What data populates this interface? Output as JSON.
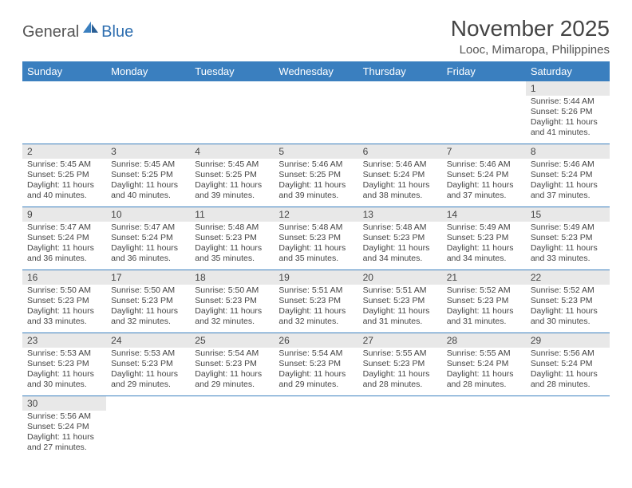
{
  "brand": {
    "part1": "General",
    "part2": "Blue"
  },
  "title": "November 2025",
  "location": "Looc, Mimaropa, Philippines",
  "colors": {
    "header_bg": "#3a7fbf",
    "header_fg": "#ffffff",
    "daynum_bg": "#e8e8e8",
    "rule": "#3a7fbf",
    "text": "#444444",
    "brand_accent": "#2f6fb0"
  },
  "weekdays": [
    "Sunday",
    "Monday",
    "Tuesday",
    "Wednesday",
    "Thursday",
    "Friday",
    "Saturday"
  ],
  "weeks": [
    [
      {
        "n": "",
        "sr": "",
        "ss": "",
        "dl": ""
      },
      {
        "n": "",
        "sr": "",
        "ss": "",
        "dl": ""
      },
      {
        "n": "",
        "sr": "",
        "ss": "",
        "dl": ""
      },
      {
        "n": "",
        "sr": "",
        "ss": "",
        "dl": ""
      },
      {
        "n": "",
        "sr": "",
        "ss": "",
        "dl": ""
      },
      {
        "n": "",
        "sr": "",
        "ss": "",
        "dl": ""
      },
      {
        "n": "1",
        "sr": "Sunrise: 5:44 AM",
        "ss": "Sunset: 5:26 PM",
        "dl": "Daylight: 11 hours and 41 minutes."
      }
    ],
    [
      {
        "n": "2",
        "sr": "Sunrise: 5:45 AM",
        "ss": "Sunset: 5:25 PM",
        "dl": "Daylight: 11 hours and 40 minutes."
      },
      {
        "n": "3",
        "sr": "Sunrise: 5:45 AM",
        "ss": "Sunset: 5:25 PM",
        "dl": "Daylight: 11 hours and 40 minutes."
      },
      {
        "n": "4",
        "sr": "Sunrise: 5:45 AM",
        "ss": "Sunset: 5:25 PM",
        "dl": "Daylight: 11 hours and 39 minutes."
      },
      {
        "n": "5",
        "sr": "Sunrise: 5:46 AM",
        "ss": "Sunset: 5:25 PM",
        "dl": "Daylight: 11 hours and 39 minutes."
      },
      {
        "n": "6",
        "sr": "Sunrise: 5:46 AM",
        "ss": "Sunset: 5:24 PM",
        "dl": "Daylight: 11 hours and 38 minutes."
      },
      {
        "n": "7",
        "sr": "Sunrise: 5:46 AM",
        "ss": "Sunset: 5:24 PM",
        "dl": "Daylight: 11 hours and 37 minutes."
      },
      {
        "n": "8",
        "sr": "Sunrise: 5:46 AM",
        "ss": "Sunset: 5:24 PM",
        "dl": "Daylight: 11 hours and 37 minutes."
      }
    ],
    [
      {
        "n": "9",
        "sr": "Sunrise: 5:47 AM",
        "ss": "Sunset: 5:24 PM",
        "dl": "Daylight: 11 hours and 36 minutes."
      },
      {
        "n": "10",
        "sr": "Sunrise: 5:47 AM",
        "ss": "Sunset: 5:24 PM",
        "dl": "Daylight: 11 hours and 36 minutes."
      },
      {
        "n": "11",
        "sr": "Sunrise: 5:48 AM",
        "ss": "Sunset: 5:23 PM",
        "dl": "Daylight: 11 hours and 35 minutes."
      },
      {
        "n": "12",
        "sr": "Sunrise: 5:48 AM",
        "ss": "Sunset: 5:23 PM",
        "dl": "Daylight: 11 hours and 35 minutes."
      },
      {
        "n": "13",
        "sr": "Sunrise: 5:48 AM",
        "ss": "Sunset: 5:23 PM",
        "dl": "Daylight: 11 hours and 34 minutes."
      },
      {
        "n": "14",
        "sr": "Sunrise: 5:49 AM",
        "ss": "Sunset: 5:23 PM",
        "dl": "Daylight: 11 hours and 34 minutes."
      },
      {
        "n": "15",
        "sr": "Sunrise: 5:49 AM",
        "ss": "Sunset: 5:23 PM",
        "dl": "Daylight: 11 hours and 33 minutes."
      }
    ],
    [
      {
        "n": "16",
        "sr": "Sunrise: 5:50 AM",
        "ss": "Sunset: 5:23 PM",
        "dl": "Daylight: 11 hours and 33 minutes."
      },
      {
        "n": "17",
        "sr": "Sunrise: 5:50 AM",
        "ss": "Sunset: 5:23 PM",
        "dl": "Daylight: 11 hours and 32 minutes."
      },
      {
        "n": "18",
        "sr": "Sunrise: 5:50 AM",
        "ss": "Sunset: 5:23 PM",
        "dl": "Daylight: 11 hours and 32 minutes."
      },
      {
        "n": "19",
        "sr": "Sunrise: 5:51 AM",
        "ss": "Sunset: 5:23 PM",
        "dl": "Daylight: 11 hours and 32 minutes."
      },
      {
        "n": "20",
        "sr": "Sunrise: 5:51 AM",
        "ss": "Sunset: 5:23 PM",
        "dl": "Daylight: 11 hours and 31 minutes."
      },
      {
        "n": "21",
        "sr": "Sunrise: 5:52 AM",
        "ss": "Sunset: 5:23 PM",
        "dl": "Daylight: 11 hours and 31 minutes."
      },
      {
        "n": "22",
        "sr": "Sunrise: 5:52 AM",
        "ss": "Sunset: 5:23 PM",
        "dl": "Daylight: 11 hours and 30 minutes."
      }
    ],
    [
      {
        "n": "23",
        "sr": "Sunrise: 5:53 AM",
        "ss": "Sunset: 5:23 PM",
        "dl": "Daylight: 11 hours and 30 minutes."
      },
      {
        "n": "24",
        "sr": "Sunrise: 5:53 AM",
        "ss": "Sunset: 5:23 PM",
        "dl": "Daylight: 11 hours and 29 minutes."
      },
      {
        "n": "25",
        "sr": "Sunrise: 5:54 AM",
        "ss": "Sunset: 5:23 PM",
        "dl": "Daylight: 11 hours and 29 minutes."
      },
      {
        "n": "26",
        "sr": "Sunrise: 5:54 AM",
        "ss": "Sunset: 5:23 PM",
        "dl": "Daylight: 11 hours and 29 minutes."
      },
      {
        "n": "27",
        "sr": "Sunrise: 5:55 AM",
        "ss": "Sunset: 5:23 PM",
        "dl": "Daylight: 11 hours and 28 minutes."
      },
      {
        "n": "28",
        "sr": "Sunrise: 5:55 AM",
        "ss": "Sunset: 5:24 PM",
        "dl": "Daylight: 11 hours and 28 minutes."
      },
      {
        "n": "29",
        "sr": "Sunrise: 5:56 AM",
        "ss": "Sunset: 5:24 PM",
        "dl": "Daylight: 11 hours and 28 minutes."
      }
    ],
    [
      {
        "n": "30",
        "sr": "Sunrise: 5:56 AM",
        "ss": "Sunset: 5:24 PM",
        "dl": "Daylight: 11 hours and 27 minutes."
      },
      {
        "n": "",
        "sr": "",
        "ss": "",
        "dl": ""
      },
      {
        "n": "",
        "sr": "",
        "ss": "",
        "dl": ""
      },
      {
        "n": "",
        "sr": "",
        "ss": "",
        "dl": ""
      },
      {
        "n": "",
        "sr": "",
        "ss": "",
        "dl": ""
      },
      {
        "n": "",
        "sr": "",
        "ss": "",
        "dl": ""
      },
      {
        "n": "",
        "sr": "",
        "ss": "",
        "dl": ""
      }
    ]
  ]
}
